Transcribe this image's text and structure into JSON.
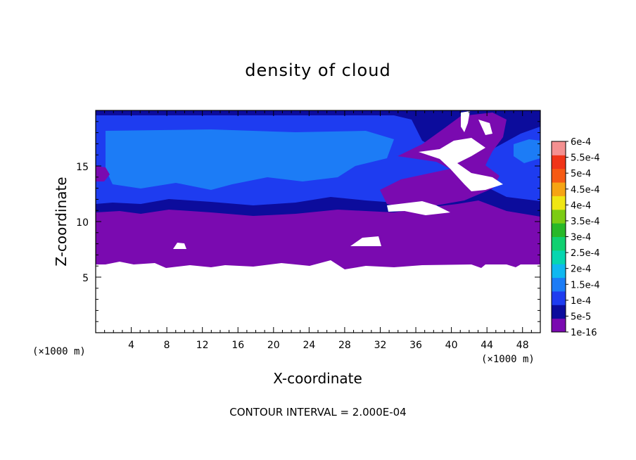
{
  "chart_data": {
    "type": "heatmap",
    "title": "density of cloud",
    "xlabel": "X-coordinate",
    "ylabel": "Z-coordinate",
    "x_unit": "(×1000 m)",
    "y_unit": "(×1000 m)",
    "xlim": [
      0,
      50
    ],
    "ylim": [
      0,
      20
    ],
    "x_ticks": [
      4,
      8,
      12,
      16,
      20,
      24,
      28,
      32,
      36,
      40,
      44,
      48
    ],
    "y_ticks": [
      5,
      10,
      15
    ],
    "footer": "CONTOUR INTERVAL = 2.000E-04",
    "colorbar": {
      "labels": [
        "1e-16",
        "5e-5",
        "1e-4",
        "1.5e-4",
        "2e-4",
        "2.5e-4",
        "3e-4",
        "3.5e-4",
        "4e-4",
        "4.5e-4",
        "5e-4",
        "5.5e-4",
        "6e-4"
      ],
      "colors": [
        "#7a0ab0",
        "#0c0c9c",
        "#1e3cf0",
        "#1c7cf6",
        "#10b8f0",
        "#06d6b0",
        "#10d070",
        "#28b828",
        "#7ccc14",
        "#f0e614",
        "#f6a414",
        "#f65a14",
        "#f03418",
        "#f49090"
      ]
    },
    "field_bands": [
      {
        "z_min": 6.0,
        "z_max": 10.5,
        "class": "1e-16"
      },
      {
        "z_min": 10.5,
        "z_max": 11.5,
        "class": "5e-5"
      },
      {
        "z_min": 11.5,
        "z_max": 18.5,
        "class": "1e-4"
      },
      {
        "z_min": 13.0,
        "z_max": 17.5,
        "class": "1.5e-4"
      },
      {
        "z_min": 18.5,
        "z_max": 20.0,
        "class": "5e-5"
      }
    ]
  }
}
